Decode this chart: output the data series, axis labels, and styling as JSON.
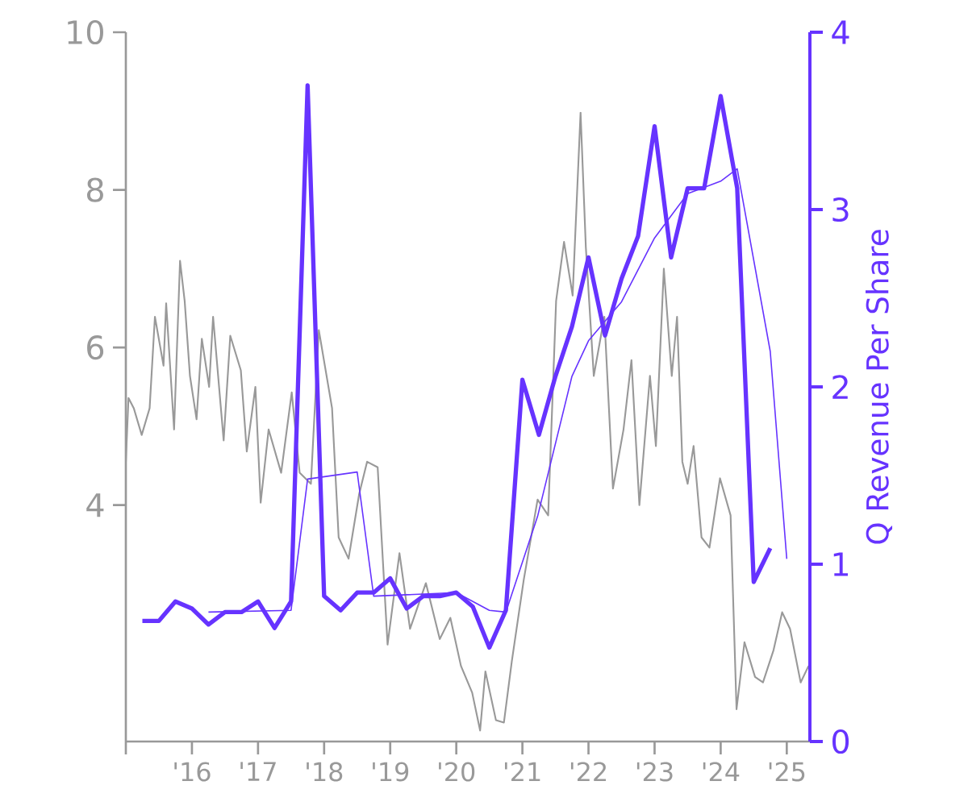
{
  "chart_data": {
    "type": "line",
    "y2label": "Q Revenue Per Share",
    "xlim": [
      2015.0,
      2025.35
    ],
    "xticks": [
      {
        "value": 2015,
        "label": null
      },
      {
        "value": 2016,
        "label": "'16"
      },
      {
        "value": 2017,
        "label": "'17"
      },
      {
        "value": 2018,
        "label": "'18"
      },
      {
        "value": 2019,
        "label": "'19"
      },
      {
        "value": 2020,
        "label": "'20"
      },
      {
        "value": 2021,
        "label": "'21"
      },
      {
        "value": 2022,
        "label": "'22"
      },
      {
        "value": 2023,
        "label": "'23"
      },
      {
        "value": 2024,
        "label": "'24"
      },
      {
        "value": 2025,
        "label": "'25"
      }
    ],
    "ylim": [
      1,
      10
    ],
    "yticks": [
      4,
      6,
      8,
      10
    ],
    "y2lim": [
      0,
      4
    ],
    "y2ticks": [
      0,
      1,
      2,
      3,
      4
    ],
    "grid": false,
    "marker": "none",
    "line_style": "solid",
    "series": [
      {
        "color": "#999999",
        "x": [
          2015.0,
          2015.04,
          2015.12,
          2015.24,
          2015.36,
          2015.44,
          2015.57,
          2015.61,
          2015.73,
          2015.82,
          2015.89,
          2015.97,
          2016.07,
          2016.15,
          2016.26,
          2016.32,
          2016.48,
          2016.58,
          2016.74,
          2016.83,
          2016.96,
          2017.04,
          2017.16,
          2017.35,
          2017.51,
          2017.63,
          2017.8,
          2017.92,
          2018.12,
          2018.22,
          2018.37,
          2018.53,
          2018.65,
          2018.81,
          2018.96,
          2019.14,
          2019.3,
          2019.54,
          2019.75,
          2019.91,
          2020.07,
          2020.24,
          2020.36,
          2020.44,
          2020.6,
          2020.72,
          2020.84,
          2021.02,
          2021.23,
          2021.39,
          2021.51,
          2021.63,
          2021.76,
          2021.88,
          2021.96,
          2022.08,
          2022.24,
          2022.37,
          2022.53,
          2022.65,
          2022.77,
          2022.93,
          2023.02,
          2023.14,
          2023.26,
          2023.34,
          2023.42,
          2023.5,
          2023.59,
          2023.71,
          2023.83,
          2023.99,
          2024.15,
          2024.24,
          2024.36,
          2024.52,
          2024.64,
          2024.8,
          2024.93,
          2025.05,
          2025.21,
          2025.33
        ],
        "values": [
          4.55,
          5.36,
          5.23,
          4.89,
          5.23,
          6.39,
          5.77,
          6.56,
          4.96,
          7.1,
          6.59,
          5.64,
          5.09,
          6.11,
          5.5,
          6.39,
          4.82,
          6.15,
          5.71,
          4.68,
          5.5,
          4.03,
          4.96,
          4.41,
          5.43,
          4.41,
          4.27,
          6.22,
          5.23,
          3.59,
          3.32,
          4.14,
          4.55,
          4.48,
          2.23,
          3.39,
          2.43,
          3.01,
          2.3,
          2.57,
          1.96,
          1.62,
          1.14,
          1.89,
          1.27,
          1.24,
          2.02,
          3.05,
          4.07,
          3.87,
          6.59,
          7.34,
          6.66,
          8.98,
          7.27,
          5.64,
          6.39,
          4.21,
          4.96,
          5.84,
          4.0,
          5.64,
          4.75,
          7.0,
          5.64,
          6.39,
          4.55,
          4.27,
          4.75,
          3.59,
          3.46,
          4.34,
          3.87,
          1.41,
          2.26,
          1.82,
          1.75,
          2.16,
          2.64,
          2.43,
          1.75,
          1.96
        ]
      },
      {
        "color": "#6633ff",
        "axis": "y2",
        "x": [
          2016.25,
          2017.5,
          2017.75,
          2018.5,
          2018.75,
          2020.0,
          2020.5,
          2020.75,
          2021.23,
          2021.75,
          2022.0,
          2022.5,
          2023.0,
          2023.5,
          2024.0,
          2024.25,
          2024.75,
          2025.0
        ],
        "values": [
          0.73,
          0.74,
          1.48,
          1.52,
          0.82,
          0.84,
          0.74,
          0.73,
          1.27,
          2.06,
          2.26,
          2.48,
          2.84,
          3.09,
          3.16,
          3.23,
          2.2,
          1.03
        ]
      },
      {
        "color": "#6633ff",
        "axis": "y2",
        "x": [
          2015.25,
          2015.5,
          2015.75,
          2016.0,
          2016.25,
          2016.5,
          2016.75,
          2017.0,
          2017.25,
          2017.5,
          2017.75,
          2018.0,
          2018.25,
          2018.5,
          2018.75,
          2019.0,
          2019.25,
          2019.5,
          2019.75,
          2020.0,
          2020.25,
          2020.5,
          2020.75,
          2021.0,
          2021.25,
          2021.5,
          2021.75,
          2022.0,
          2022.25,
          2022.5,
          2022.75,
          2023.0,
          2023.25,
          2023.5,
          2023.75,
          2024.0,
          2024.25,
          2024.5,
          2024.75
        ],
        "values": [
          0.68,
          0.68,
          0.79,
          0.75,
          0.66,
          0.73,
          0.73,
          0.79,
          0.64,
          0.79,
          3.7,
          0.82,
          0.74,
          0.84,
          0.84,
          0.92,
          0.75,
          0.82,
          0.82,
          0.84,
          0.76,
          0.53,
          0.74,
          2.04,
          1.73,
          2.06,
          2.34,
          2.73,
          2.29,
          2.61,
          2.85,
          3.47,
          2.73,
          3.12,
          3.12,
          3.64,
          3.12,
          0.9,
          1.09
        ]
      }
    ]
  }
}
